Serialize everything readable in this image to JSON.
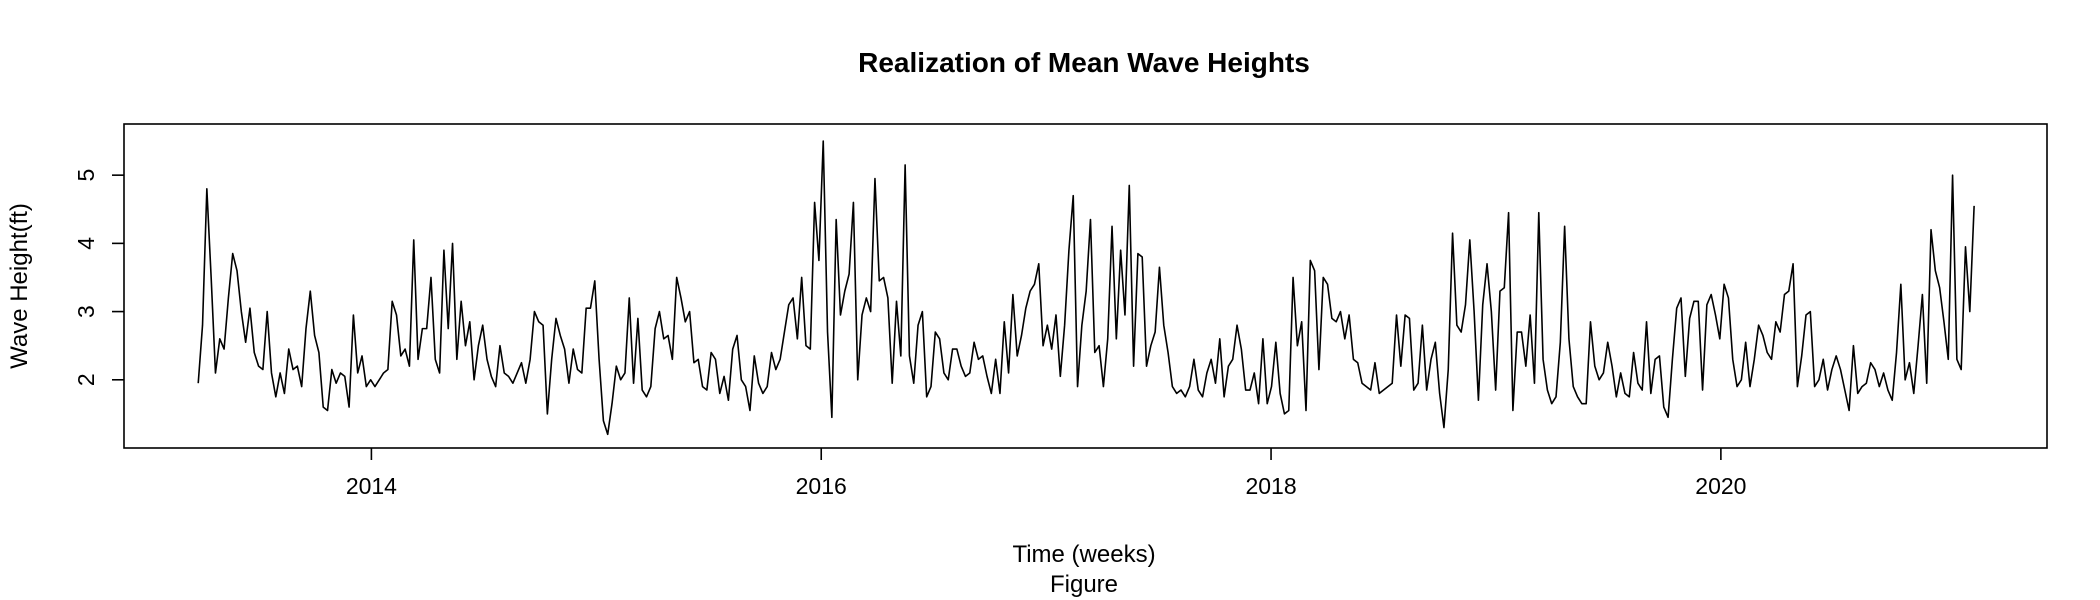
{
  "chart_data": {
    "type": "line",
    "title": "Realization of Mean Wave Heights",
    "xlabel": "Time (weeks)",
    "caption": "Figure",
    "ylabel": "Wave Height(ft)",
    "xlim": [
      2012.9,
      2021.45
    ],
    "ylim": [
      1.0,
      5.75
    ],
    "x_ticks": [
      2014,
      2016,
      2018,
      2020
    ],
    "y_ticks": [
      2,
      3,
      4,
      5
    ],
    "grid": false,
    "legend": "none",
    "line_color": "#000000",
    "series": [
      {
        "start_year": 2013.23,
        "step_weeks": 1,
        "values": [
          1.95,
          2.8,
          4.8,
          3.5,
          2.1,
          2.6,
          2.45,
          3.2,
          3.85,
          3.6,
          3.0,
          2.55,
          3.05,
          2.4,
          2.2,
          2.15,
          3.0,
          2.1,
          1.75,
          2.1,
          1.8,
          2.45,
          2.15,
          2.2,
          1.9,
          2.75,
          3.3,
          2.65,
          2.4,
          1.6,
          1.55,
          2.15,
          1.95,
          2.1,
          2.05,
          1.6,
          2.95,
          2.1,
          2.35,
          1.9,
          2.0,
          1.9,
          2.0,
          2.1,
          2.15,
          3.15,
          2.95,
          2.35,
          2.45,
          2.2,
          4.05,
          2.3,
          2.75,
          2.75,
          3.5,
          2.3,
          2.1,
          3.9,
          2.75,
          4.0,
          2.3,
          3.15,
          2.5,
          2.85,
          2.0,
          2.5,
          2.8,
          2.3,
          2.05,
          1.9,
          2.5,
          2.1,
          2.05,
          1.95,
          2.1,
          2.25,
          1.95,
          2.3,
          3.0,
          2.85,
          2.8,
          1.5,
          2.3,
          2.9,
          2.65,
          2.45,
          1.95,
          2.45,
          2.15,
          2.1,
          3.05,
          3.05,
          3.45,
          2.3,
          1.4,
          1.2,
          1.65,
          2.2,
          2.0,
          2.1,
          3.2,
          1.95,
          2.9,
          1.85,
          1.75,
          1.9,
          2.75,
          3.0,
          2.6,
          2.65,
          2.3,
          3.5,
          3.2,
          2.85,
          3.0,
          2.25,
          2.3,
          1.9,
          1.85,
          2.4,
          2.3,
          1.8,
          2.05,
          1.7,
          2.45,
          2.65,
          2.0,
          1.9,
          1.55,
          2.35,
          1.95,
          1.8,
          1.9,
          2.4,
          2.15,
          2.3,
          2.7,
          3.1,
          3.2,
          2.6,
          3.5,
          2.5,
          2.45,
          4.6,
          3.75,
          5.5,
          2.7,
          1.45,
          4.35,
          2.95,
          3.3,
          3.55,
          4.6,
          2.0,
          2.95,
          3.2,
          3.0,
          4.95,
          3.45,
          3.5,
          3.2,
          1.95,
          3.15,
          2.35,
          5.15,
          2.35,
          1.95,
          2.8,
          3.0,
          1.75,
          1.9,
          2.7,
          2.6,
          2.1,
          2.0,
          2.45,
          2.45,
          2.2,
          2.05,
          2.1,
          2.55,
          2.3,
          2.35,
          2.05,
          1.8,
          2.3,
          1.8,
          2.85,
          2.1,
          3.25,
          2.35,
          2.65,
          3.05,
          3.3,
          3.4,
          3.7,
          2.5,
          2.8,
          2.45,
          2.95,
          2.05,
          2.8,
          3.9,
          4.7,
          1.9,
          2.8,
          3.3,
          4.35,
          2.4,
          2.5,
          1.9,
          2.6,
          4.25,
          2.6,
          3.9,
          2.95,
          4.85,
          2.2,
          3.85,
          3.8,
          2.2,
          2.5,
          2.7,
          3.65,
          2.8,
          2.4,
          1.9,
          1.8,
          1.85,
          1.75,
          1.9,
          2.3,
          1.85,
          1.75,
          2.1,
          2.3,
          1.95,
          2.6,
          1.75,
          2.2,
          2.3,
          2.8,
          2.45,
          1.85,
          1.85,
          2.1,
          1.65,
          2.6,
          1.65,
          1.9,
          2.55,
          1.8,
          1.5,
          1.55,
          3.5,
          2.5,
          2.85,
          1.55,
          3.75,
          3.6,
          2.15,
          3.5,
          3.4,
          2.9,
          2.85,
          3.0,
          2.6,
          2.95,
          2.3,
          2.25,
          1.95,
          1.9,
          1.85,
          2.25,
          1.8,
          1.85,
          1.9,
          1.95,
          2.95,
          2.2,
          2.95,
          2.9,
          1.85,
          1.95,
          2.8,
          1.85,
          2.3,
          2.55,
          1.8,
          1.3,
          2.15,
          4.15,
          2.8,
          2.7,
          3.1,
          4.05,
          3.0,
          1.7,
          3.1,
          3.7,
          3.0,
          1.85,
          3.3,
          3.35,
          4.45,
          1.55,
          2.7,
          2.7,
          2.2,
          2.95,
          1.95,
          4.45,
          2.3,
          1.85,
          1.65,
          1.75,
          2.55,
          4.25,
          2.6,
          1.9,
          1.75,
          1.65,
          1.65,
          2.85,
          2.2,
          2.0,
          2.1,
          2.55,
          2.2,
          1.75,
          2.1,
          1.8,
          1.75,
          2.4,
          1.95,
          1.85,
          2.85,
          1.8,
          2.3,
          2.35,
          1.6,
          1.45,
          2.3,
          3.05,
          3.2,
          2.05,
          2.9,
          3.15,
          3.15,
          1.85,
          3.1,
          3.25,
          2.95,
          2.6,
          3.4,
          3.2,
          2.3,
          1.9,
          2.0,
          2.55,
          1.9,
          2.3,
          2.8,
          2.65,
          2.4,
          2.3,
          2.85,
          2.7,
          3.25,
          3.3,
          3.7,
          1.9,
          2.35,
          2.95,
          3.0,
          1.9,
          2.0,
          2.3,
          1.85,
          2.15,
          2.35,
          2.15,
          1.85,
          1.55,
          2.5,
          1.8,
          1.9,
          1.95,
          2.25,
          2.15,
          1.9,
          2.1,
          1.85,
          1.7,
          2.4,
          3.4,
          2.0,
          2.25,
          1.8,
          2.5,
          3.25,
          1.95,
          4.2,
          3.6,
          3.35,
          2.85,
          2.3,
          5.0,
          2.3,
          2.15,
          3.95,
          3.0,
          4.55
        ]
      }
    ]
  }
}
